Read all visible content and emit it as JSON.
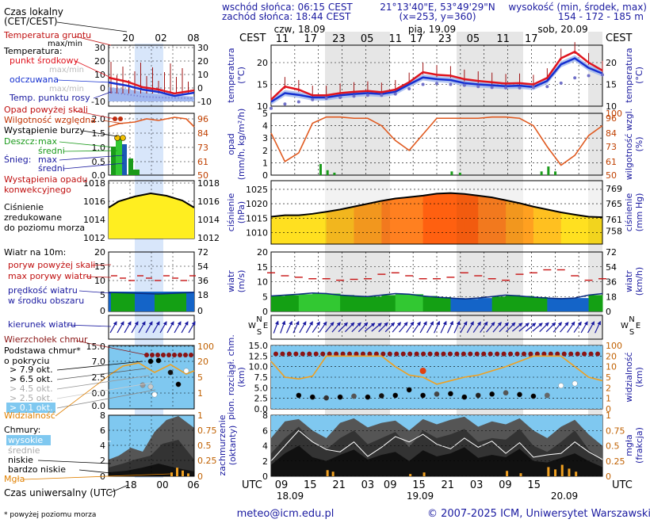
{
  "header": {
    "sunrise": "wschód słońca: 06:15 CEST",
    "sunset": "zachód słońca: 18:44 CEST",
    "coords": "21°13'40\"E, 53°49'29\"N",
    "grid": "(x=253, y=360)",
    "alt_title": "wysokość (min, środek, max)",
    "alt_values": "154 - 172 - 185 m",
    "tz_left": "CEST",
    "tz_right": "CEST",
    "utc_left": "UTC",
    "utc_right": "UTC"
  },
  "dates_top": [
    "czw, 18.09",
    "pią, 19.09",
    "sob, 20.09"
  ],
  "hours_top": [
    "11",
    "17",
    "23",
    "05",
    "11",
    "17",
    "23",
    "05",
    "11",
    "17"
  ],
  "hours_bottom": [
    "09",
    "15",
    "21",
    "03",
    "09",
    "15",
    "21",
    "03",
    "09",
    "15"
  ],
  "dates_bottom": [
    "18.09",
    "19.09",
    "20.09"
  ],
  "legend": {
    "time_title": "Czas lokalny (CET/CEST)",
    "time_hours": [
      "20",
      "02",
      "08"
    ],
    "utc_title": "Czas uniwersalny (UTC)",
    "utc_hours": [
      "18",
      "00",
      "06"
    ],
    "footnote": "* powyżej poziomu morza",
    "temp_ground": "Temperatura gruntu",
    "temp_ground_sub": "max/min",
    "temp_title": "Temperatura:",
    "temp_mid": "punkt środkowy",
    "temp_maxmin": "max/min",
    "temp_perceived": "odczuwana",
    "temp_perceived_maxmin": "max/min",
    "temp_dew": "Temp. punktu rosy",
    "precip_over": "Opad powyżej skali",
    "humidity": "Wilgotność względna",
    "storm": "Wystąpienie burzy",
    "rain_title": "Deszcz:",
    "rain_max": "max",
    "rain_mean": "średni",
    "snow_title": "Śnieg:",
    "snow_max": "max",
    "snow_mean": "średni",
    "conv": "Wystąpienie opadu konwekcyjnego",
    "pressure_l1": "Ciśnienie",
    "pressure_l2": "zredukowane",
    "pressure_l3": "do poziomu morza",
    "wind_title": "Wiatr na 10m:",
    "gust_over": "poryw powyżej skali",
    "gust_max": "max porywy wiatru",
    "wind_speed": "prędkość wiatru",
    "wind_speed_sub": "w środku obszaru",
    "wind_dir": "kierunek wiatru",
    "cloud_top": "Wierzchołek chmur",
    "cloud_base": "Podstawa chmur*",
    "cloud_base_sub": "o pokryciu",
    "okt_labels": [
      "> 7.9 okt.",
      "> 6.5 okt.",
      "> 4.5 okt.",
      "> 2.5 okt.",
      "> 0.1 okt."
    ],
    "visibility": "Widzialność",
    "clouds_title": "Chmury:",
    "cl_high": "wysokie",
    "cl_mid": "średnie",
    "cl_low": "niskie",
    "cl_vlow": "bardzo niskie",
    "fog": "Mgła"
  },
  "axes": {
    "temp_left": "temperatura",
    "temp_left_u": "(°C)",
    "temp_right": "temperatura",
    "temp_right_u": "(°C)",
    "precip_left": "opad",
    "precip_left_u": "(mm/h, kg/m²/h)",
    "precip_right": "wilgotność wzgl.",
    "precip_right_u": "(%)",
    "press_left": "ciśnienie",
    "press_left_u": "(hPa)",
    "press_right": "ciśnienie",
    "press_right_u": "(mm Hg)",
    "wind_left": "wiatr",
    "wind_left_u": "(m/s)",
    "wind_right": "wiatr",
    "wind_right_u": "(km/h)",
    "cloud_left": "pion. rozciągł. chm.",
    "cloud_left_u": "(km)",
    "cloud_right": "widzialność",
    "cloud_right_u": "(km)",
    "cov_left": "zachmurzenie",
    "cov_left_u": "(oktanty)",
    "cov_right": "mgła",
    "cov_right_u": "(frakcja)"
  },
  "footer": {
    "email": "meteo@icm.edu.pl",
    "copyright": "© 2007-2025 ICM, Uniwersytet Warszawski"
  },
  "chart_data": {
    "type": "line",
    "time_step_hours": 3,
    "time_start_local": "2025-09-18 08:00 CEST",
    "temperature": {
      "ticks_left": [
        10,
        15,
        20
      ],
      "ticks_right": [
        10,
        15,
        20
      ],
      "ylim": [
        10,
        24
      ],
      "mid": [
        11.5,
        14.5,
        13.8,
        12.5,
        12.5,
        13.0,
        13.3,
        13.5,
        13.2,
        13.8,
        15.5,
        17.8,
        17.2,
        17.0,
        16.2,
        15.8,
        15.5,
        15.2,
        15.3,
        15.0,
        16.5,
        21.0,
        22.5,
        20.0,
        18.2
      ],
      "perceived": [
        11.0,
        13.0,
        12.6,
        12.0,
        12.0,
        12.5,
        12.8,
        13.0,
        12.8,
        13.3,
        15.0,
        16.6,
        16.2,
        16.0,
        15.3,
        15.0,
        14.8,
        14.6,
        14.7,
        14.4,
        15.8,
        19.6,
        21.0,
        18.8,
        17.5
      ],
      "dew": [
        9.5,
        10.5,
        11.0,
        11.5,
        11.8,
        12.0,
        12.3,
        12.5,
        12.5,
        12.8,
        14.0,
        15.0,
        15.2,
        15.0,
        14.8,
        14.5,
        14.3,
        14.2,
        14.2,
        14.3,
        14.5,
        15.3,
        16.5,
        17.0,
        17.2
      ]
    },
    "precip_humidity": {
      "ticks_left": [
        0,
        1,
        2,
        3,
        4,
        5
      ],
      "ticks_right": [
        50,
        61,
        73,
        84,
        96,
        100
      ],
      "humidity": [
        84,
        61,
        68,
        92,
        97,
        97,
        96,
        96,
        90,
        78,
        70,
        83,
        96,
        96,
        96,
        96,
        97,
        97,
        96,
        90,
        73,
        58,
        66,
        82,
        90
      ],
      "rain_bars": [
        {
          "t": 3.5,
          "mm": 0.9
        },
        {
          "t": 4.0,
          "mm": 0.4
        },
        {
          "t": 4.5,
          "mm": 0.2
        },
        {
          "t": 13.0,
          "mm": 0.3
        },
        {
          "t": 13.6,
          "mm": 0.2
        },
        {
          "t": 19.5,
          "mm": 0.3
        },
        {
          "t": 20.0,
          "mm": 0.7
        },
        {
          "t": 20.5,
          "mm": 0.3
        }
      ]
    },
    "pressure": {
      "ticks_left": [
        1010,
        1015,
        1020,
        1025
      ],
      "ticks_right": [
        758,
        761,
        765,
        769
      ],
      "ylim": [
        1006,
        1028
      ],
      "values": [
        1015.5,
        1016.0,
        1016.0,
        1016.5,
        1017.2,
        1018.0,
        1019.0,
        1020.0,
        1021.0,
        1021.8,
        1022.3,
        1022.8,
        1023.5,
        1023.7,
        1023.4,
        1022.8,
        1022.2,
        1021.2,
        1020.2,
        1019.0,
        1018.0,
        1017.0,
        1016.2,
        1015.5,
        1015.3
      ]
    },
    "wind": {
      "ticks_left": [
        0,
        5,
        10,
        15,
        20
      ],
      "ticks_right": [
        0,
        18,
        36,
        54,
        72
      ],
      "speed": [
        5.2,
        5.5,
        5.8,
        6.2,
        6.0,
        5.5,
        5.2,
        5.0,
        5.5,
        6.0,
        5.8,
        5.2,
        4.8,
        4.5,
        4.2,
        4.5,
        5.0,
        5.5,
        5.2,
        4.8,
        4.5,
        4.3,
        4.5,
        5.5,
        6.0
      ],
      "gust": [
        13.0,
        12.0,
        11.5,
        11.0,
        11.0,
        10.5,
        10.8,
        11.0,
        12.5,
        13.0,
        12.0,
        11.0,
        11.0,
        11.5,
        13.0,
        12.0,
        11.0,
        10.5,
        12.5,
        13.0,
        14.0,
        14.0,
        12.0,
        10.5,
        11.0
      ],
      "direction_deg": [
        200,
        205,
        210,
        215,
        220,
        225,
        225,
        230,
        225,
        220,
        215,
        210,
        205,
        205,
        210,
        215,
        220,
        225,
        230,
        230,
        225,
        220,
        215,
        210,
        205
      ]
    },
    "clouds": {
      "ticks_left": [
        0,
        2.5,
        5,
        7.5,
        10,
        12.5,
        15
      ],
      "ticks_right": [
        0,
        1,
        2,
        5,
        10,
        20,
        100
      ],
      "cover_ticks": [
        0,
        2,
        4,
        6,
        8
      ],
      "fog_ticks": [
        0,
        0.25,
        0.5,
        0.75,
        1
      ],
      "visibility_km": [
        15,
        5,
        4.5,
        5.5,
        20,
        20,
        20,
        20,
        20,
        10,
        6,
        5,
        3,
        4,
        5,
        6,
        8,
        10,
        15,
        20,
        20,
        20,
        10,
        5,
        4
      ]
    }
  }
}
